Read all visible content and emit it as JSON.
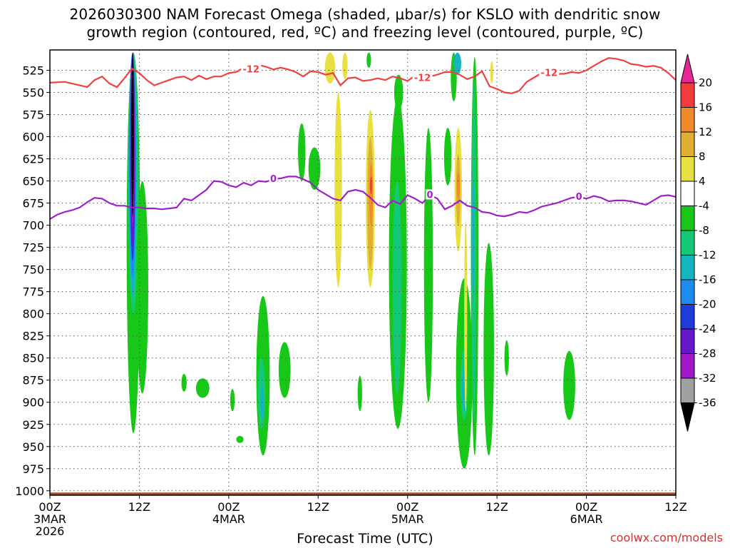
{
  "title": {
    "line1": "2026030300 NAM Forecast Omega (shaded, μbar/s) for KSLO with dendritic snow",
    "line2": "growth region (contoured, red, ºC) and freezing level (contoured, purple, ºC)"
  },
  "credit": "coolwx.com/models",
  "chart_data": {
    "type": "heatmap",
    "title": "2026030300 NAM Forecast Omega (shaded, μbar/s) for KSLO with dendritic snow growth region (contoured, red, ºC) and freezing level (contoured, purple, ºC)",
    "xlabel": "Forecast Time (UTC)",
    "ylabel": "",
    "x_axis": {
      "unit": "hours since 2026-03-03 00Z",
      "range": [
        0,
        84
      ],
      "ticks": [
        {
          "x": 0,
          "label": [
            "00Z",
            "3MAR",
            "2026"
          ]
        },
        {
          "x": 12,
          "label": [
            "12Z"
          ]
        },
        {
          "x": 24,
          "label": [
            "00Z",
            "4MAR"
          ]
        },
        {
          "x": 36,
          "label": [
            "12Z"
          ]
        },
        {
          "x": 48,
          "label": [
            "00Z",
            "5MAR"
          ]
        },
        {
          "x": 60,
          "label": [
            "12Z"
          ]
        },
        {
          "x": 72,
          "label": [
            "00Z",
            "6MAR"
          ]
        },
        {
          "x": 84,
          "label": [
            "12Z"
          ]
        }
      ]
    },
    "y_axis": {
      "unit": "mb",
      "range": [
        1005,
        502
      ],
      "ticks": [
        525,
        550,
        575,
        600,
        625,
        650,
        675,
        700,
        725,
        750,
        775,
        800,
        825,
        850,
        875,
        900,
        925,
        950,
        975,
        1000
      ]
    },
    "grid": true,
    "colorbar": {
      "labels": [
        20,
        16,
        12,
        8,
        4,
        -4,
        -8,
        -12,
        -16,
        -20,
        -24,
        -28,
        -32,
        -36
      ],
      "bands": [
        {
          "range": [
            16,
            20
          ],
          "color": "#f23c3c"
        },
        {
          "range": [
            12,
            16
          ],
          "color": "#f08a2a"
        },
        {
          "range": [
            8,
            12
          ],
          "color": "#e0b034"
        },
        {
          "range": [
            4,
            8
          ],
          "color": "#e8e040"
        },
        {
          "range": [
            -4,
            4
          ],
          "color": "#ffffff"
        },
        {
          "range": [
            -8,
            -4
          ],
          "color": "#18c818"
        },
        {
          "range": [
            -12,
            -8
          ],
          "color": "#14c878"
        },
        {
          "range": [
            -16,
            -12
          ],
          "color": "#14b4c0"
        },
        {
          "range": [
            -20,
            -16
          ],
          "color": "#1c8cf0"
        },
        {
          "range": [
            -24,
            -20
          ],
          "color": "#1e3cdc"
        },
        {
          "range": [
            -28,
            -24
          ],
          "color": "#6418c8"
        },
        {
          "range": [
            -32,
            -28
          ],
          "color": "#a018c8"
        },
        {
          "range": [
            -36,
            -32
          ],
          "color": "#a0a0a0"
        }
      ],
      "top_arrow_color": "#e62896",
      "bottom_arrow_color": "#000000"
    },
    "contours": [
      {
        "name": "-12",
        "color": "#f04040",
        "label": "-12",
        "points": [
          [
            0,
            539
          ],
          [
            2,
            538
          ],
          [
            4,
            542
          ],
          [
            5,
            544
          ],
          [
            6,
            536
          ],
          [
            7,
            532
          ],
          [
            8,
            540
          ],
          [
            9,
            544
          ],
          [
            10,
            534
          ],
          [
            11,
            523
          ],
          [
            12,
            528
          ],
          [
            13,
            536
          ],
          [
            14,
            542
          ],
          [
            15,
            539
          ],
          [
            16,
            536
          ],
          [
            17,
            533
          ],
          [
            18,
            532
          ],
          [
            19,
            536
          ],
          [
            20,
            531
          ],
          [
            21,
            535
          ],
          [
            22,
            532
          ],
          [
            23,
            532
          ],
          [
            24,
            528
          ],
          [
            25,
            527
          ],
          [
            26,
            522
          ],
          [
            27,
            524
          ],
          [
            28,
            519
          ],
          [
            29,
            521
          ],
          [
            30,
            524
          ],
          [
            31,
            522
          ],
          [
            32,
            524
          ],
          [
            33,
            527
          ],
          [
            34,
            532
          ],
          [
            35,
            526
          ],
          [
            36,
            527
          ],
          [
            37,
            530
          ],
          [
            38,
            528
          ],
          [
            39,
            542
          ],
          [
            40,
            534
          ],
          [
            41,
            533
          ],
          [
            42,
            537
          ],
          [
            43,
            536
          ],
          [
            44,
            534
          ],
          [
            45,
            536
          ],
          [
            46,
            532
          ],
          [
            47,
            534
          ],
          [
            48,
            537
          ],
          [
            49,
            531
          ],
          [
            50,
            534
          ],
          [
            51,
            532
          ],
          [
            52,
            530
          ],
          [
            53,
            527
          ],
          [
            54,
            527
          ],
          [
            55,
            530
          ],
          [
            56,
            535
          ],
          [
            57,
            532
          ],
          [
            58,
            526
          ],
          [
            59,
            543
          ],
          [
            60,
            546
          ],
          [
            61,
            550
          ],
          [
            62,
            551
          ],
          [
            63,
            548
          ],
          [
            64,
            538
          ],
          [
            65,
            533
          ],
          [
            66,
            528
          ],
          [
            67,
            528
          ],
          [
            68,
            529
          ],
          [
            69,
            529
          ],
          [
            70,
            527
          ],
          [
            71,
            528
          ],
          [
            72,
            525
          ],
          [
            73,
            520
          ],
          [
            74,
            515
          ],
          [
            75,
            511
          ],
          [
            76,
            512
          ],
          [
            77,
            514
          ],
          [
            78,
            518
          ],
          [
            79,
            519
          ],
          [
            80,
            521
          ],
          [
            81,
            520
          ],
          [
            82,
            522
          ],
          [
            83,
            528
          ],
          [
            84,
            536
          ]
        ],
        "label_x": [
          27,
          50,
          67
        ]
      },
      {
        "name": "0",
        "color": "#a020c8",
        "label": "0",
        "points": [
          [
            0,
            693
          ],
          [
            1,
            688
          ],
          [
            2,
            685
          ],
          [
            3,
            683
          ],
          [
            4,
            680
          ],
          [
            5,
            674
          ],
          [
            6,
            669
          ],
          [
            7,
            670
          ],
          [
            8,
            675
          ],
          [
            9,
            678
          ],
          [
            10,
            678
          ],
          [
            11,
            680
          ],
          [
            12,
            680
          ],
          [
            13,
            681
          ],
          [
            14,
            681
          ],
          [
            15,
            682
          ],
          [
            16,
            681
          ],
          [
            17,
            680
          ],
          [
            18,
            670
          ],
          [
            19,
            672
          ],
          [
            20,
            666
          ],
          [
            21,
            660
          ],
          [
            22,
            650
          ],
          [
            23,
            651
          ],
          [
            24,
            655
          ],
          [
            25,
            657
          ],
          [
            26,
            652
          ],
          [
            27,
            655
          ],
          [
            28,
            650
          ],
          [
            29,
            651
          ],
          [
            30,
            648
          ],
          [
            31,
            647
          ],
          [
            32,
            645
          ],
          [
            33,
            645
          ],
          [
            34,
            648
          ],
          [
            35,
            652
          ],
          [
            36,
            660
          ],
          [
            37,
            665
          ],
          [
            38,
            670
          ],
          [
            39,
            672
          ],
          [
            40,
            662
          ],
          [
            41,
            660
          ],
          [
            42,
            662
          ],
          [
            43,
            669
          ],
          [
            44,
            677
          ],
          [
            45,
            680
          ],
          [
            46,
            672
          ],
          [
            47,
            676
          ],
          [
            48,
            666
          ],
          [
            49,
            670
          ],
          [
            50,
            675
          ],
          [
            51,
            666
          ],
          [
            52,
            670
          ],
          [
            53,
            682
          ],
          [
            54,
            678
          ],
          [
            55,
            672
          ],
          [
            56,
            678
          ],
          [
            57,
            680
          ],
          [
            58,
            685
          ],
          [
            59,
            686
          ],
          [
            60,
            689
          ],
          [
            61,
            690
          ],
          [
            62,
            688
          ],
          [
            63,
            685
          ],
          [
            64,
            686
          ],
          [
            65,
            683
          ],
          [
            66,
            679
          ],
          [
            67,
            677
          ],
          [
            68,
            675
          ],
          [
            69,
            672
          ],
          [
            70,
            669
          ],
          [
            71,
            668
          ],
          [
            72,
            670
          ],
          [
            73,
            667
          ],
          [
            74,
            669
          ],
          [
            75,
            673
          ],
          [
            76,
            672
          ],
          [
            77,
            672
          ],
          [
            78,
            673
          ],
          [
            79,
            675
          ],
          [
            80,
            677
          ],
          [
            81,
            672
          ],
          [
            82,
            667
          ],
          [
            83,
            666
          ],
          [
            84,
            668
          ]
        ],
        "label_x": [
          30,
          51,
          71
        ]
      }
    ],
    "omega_cells": [
      {
        "x": 11.2,
        "xw": 1.8,
        "p0": 505,
        "p1": 935,
        "value": -6
      },
      {
        "x": 11.2,
        "xw": 1.4,
        "p0": 505,
        "p1": 800,
        "value": -10
      },
      {
        "x": 11.1,
        "xw": 1.1,
        "p0": 505,
        "p1": 780,
        "value": -14
      },
      {
        "x": 11.1,
        "xw": 0.9,
        "p0": 505,
        "p1": 760,
        "value": -18
      },
      {
        "x": 11.1,
        "xw": 0.7,
        "p0": 505,
        "p1": 740,
        "value": -22
      },
      {
        "x": 11.1,
        "xw": 0.6,
        "p0": 505,
        "p1": 725,
        "value": -26
      },
      {
        "x": 11.1,
        "xw": 0.5,
        "p0": 505,
        "p1": 700,
        "value": -30
      },
      {
        "x": 11.1,
        "xw": 0.35,
        "p0": 505,
        "p1": 690,
        "value": -40
      },
      {
        "x": 12.4,
        "xw": 1.6,
        "p0": 650,
        "p1": 890,
        "value": -6
      },
      {
        "x": 18.0,
        "xw": 0.7,
        "p0": 868,
        "p1": 888,
        "value": -6
      },
      {
        "x": 20.5,
        "xw": 1.8,
        "p0": 873,
        "p1": 895,
        "value": -6
      },
      {
        "x": 24.5,
        "xw": 0.6,
        "p0": 885,
        "p1": 910,
        "value": -6
      },
      {
        "x": 25.5,
        "xw": 1.0,
        "p0": 938,
        "p1": 946,
        "value": -6
      },
      {
        "x": 28.6,
        "xw": 1.8,
        "p0": 780,
        "p1": 960,
        "value": -6
      },
      {
        "x": 28.4,
        "xw": 1.0,
        "p0": 850,
        "p1": 930,
        "value": -10
      },
      {
        "x": 28.5,
        "xw": 0.5,
        "p0": 880,
        "p1": 920,
        "value": -14
      },
      {
        "x": 31.5,
        "xw": 1.6,
        "p0": 832,
        "p1": 895,
        "value": -6
      },
      {
        "x": 33.8,
        "xw": 1.0,
        "p0": 585,
        "p1": 650,
        "value": -6
      },
      {
        "x": 35.5,
        "xw": 1.6,
        "p0": 612,
        "p1": 660,
        "value": -6
      },
      {
        "x": 37.6,
        "xw": 1.4,
        "p0": 505,
        "p1": 540,
        "value": 6
      },
      {
        "x": 39.6,
        "xw": 0.7,
        "p0": 505,
        "p1": 535,
        "value": 6
      },
      {
        "x": 38.7,
        "xw": 1.0,
        "p0": 550,
        "p1": 770,
        "value": 6
      },
      {
        "x": 41.6,
        "xw": 0.6,
        "p0": 870,
        "p1": 910,
        "value": -6
      },
      {
        "x": 43.0,
        "xw": 1.2,
        "p0": 570,
        "p1": 770,
        "value": 6
      },
      {
        "x": 43.0,
        "xw": 0.8,
        "p0": 600,
        "p1": 750,
        "value": 10
      },
      {
        "x": 43.1,
        "xw": 0.5,
        "p0": 630,
        "p1": 700,
        "value": 14
      },
      {
        "x": 43.1,
        "xw": 0.3,
        "p0": 645,
        "p1": 665,
        "value": 18
      },
      {
        "x": 42.8,
        "xw": 0.6,
        "p0": 505,
        "p1": 522,
        "value": -6
      },
      {
        "x": 46.7,
        "xw": 2.4,
        "p0": 555,
        "p1": 930,
        "value": -6
      },
      {
        "x": 46.6,
        "xw": 1.2,
        "p0": 650,
        "p1": 890,
        "value": -10
      },
      {
        "x": 46.8,
        "xw": 1.2,
        "p0": 530,
        "p1": 570,
        "value": -6
      },
      {
        "x": 50.8,
        "xw": 1.2,
        "p0": 590,
        "p1": 900,
        "value": -6
      },
      {
        "x": 53.4,
        "xw": 1.0,
        "p0": 590,
        "p1": 655,
        "value": -6
      },
      {
        "x": 54.2,
        "xw": 0.8,
        "p0": 505,
        "p1": 560,
        "value": -6
      },
      {
        "x": 54.8,
        "xw": 1.0,
        "p0": 590,
        "p1": 730,
        "value": 6
      },
      {
        "x": 54.8,
        "xw": 0.6,
        "p0": 620,
        "p1": 700,
        "value": 10
      },
      {
        "x": 54.8,
        "xw": 0.4,
        "p0": 640,
        "p1": 670,
        "value": 14
      },
      {
        "x": 55.6,
        "xw": 2.2,
        "p0": 760,
        "p1": 975,
        "value": -6
      },
      {
        "x": 55.6,
        "xw": 1.0,
        "p0": 840,
        "p1": 920,
        "value": -10
      },
      {
        "x": 55.6,
        "xw": 0.6,
        "p0": 860,
        "p1": 910,
        "value": -14
      },
      {
        "x": 54.7,
        "xw": 1.0,
        "p0": 505,
        "p1": 530,
        "value": -14
      },
      {
        "x": 55.8,
        "xw": 0.4,
        "p0": 695,
        "p1": 910,
        "value": 6
      },
      {
        "x": 57.0,
        "xw": 1.0,
        "p0": 510,
        "p1": 960,
        "value": -6
      },
      {
        "x": 56.9,
        "xw": 0.6,
        "p0": 540,
        "p1": 920,
        "value": -10
      },
      {
        "x": 56.8,
        "xw": 0.4,
        "p0": 650,
        "p1": 780,
        "value": -14
      },
      {
        "x": 58.9,
        "xw": 1.4,
        "p0": 720,
        "p1": 960,
        "value": -6
      },
      {
        "x": 59.3,
        "xw": 0.4,
        "p0": 515,
        "p1": 540,
        "value": 6
      },
      {
        "x": 61.3,
        "xw": 0.6,
        "p0": 830,
        "p1": 870,
        "value": -6
      },
      {
        "x": 69.7,
        "xw": 1.6,
        "p0": 842,
        "p1": 920,
        "value": -6
      }
    ],
    "terrain_top_mb": 1002
  }
}
